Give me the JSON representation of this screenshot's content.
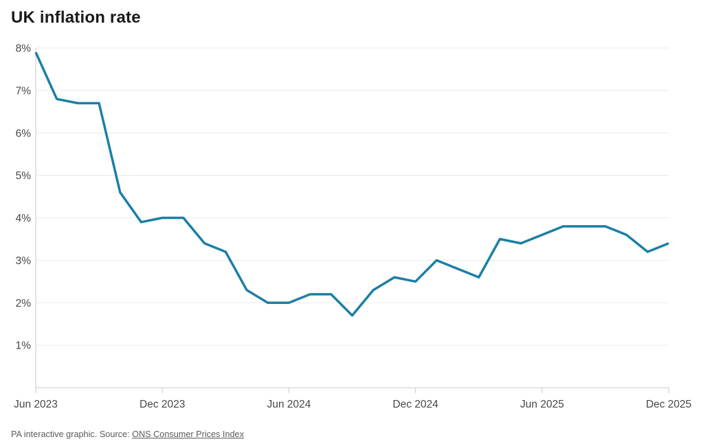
{
  "page": {
    "title": "UK inflation rate"
  },
  "footer": {
    "prefix": "PA interactive graphic. Source: ",
    "link_label": "ONS Consumer Prices Index"
  },
  "chart_data": {
    "type": "line",
    "title": "UK inflation rate",
    "x": [
      "Jun 2023",
      "Jul 2023",
      "Aug 2023",
      "Sep 2023",
      "Oct 2023",
      "Nov 2023",
      "Dec 2023",
      "Jan 2024",
      "Feb 2024",
      "Mar 2024",
      "Apr 2024",
      "May 2024",
      "Jun 2024",
      "Jul 2024",
      "Aug 2024",
      "Sep 2024",
      "Oct 2024",
      "Nov 2024",
      "Dec 2024",
      "Jan 2025",
      "Feb 2025",
      "Mar 2025",
      "Apr 2025",
      "May 2025",
      "Jun 2025",
      "Jul 2025",
      "Aug 2025",
      "Sep 2025",
      "Oct 2025",
      "Nov 2025",
      "Dec 2025"
    ],
    "values": [
      7.9,
      6.8,
      6.7,
      6.7,
      4.6,
      3.9,
      4.0,
      4.0,
      3.4,
      3.2,
      2.3,
      2.0,
      2.0,
      2.2,
      2.2,
      1.7,
      2.3,
      2.6,
      2.5,
      3.0,
      2.8,
      2.6,
      3.5,
      3.4,
      3.6,
      3.8,
      3.8,
      3.8,
      3.6,
      3.2,
      3.4
    ],
    "xlabel": "",
    "ylabel": "",
    "ylim": [
      0,
      8
    ],
    "y_ticks": [
      1,
      2,
      3,
      4,
      5,
      6,
      7,
      8
    ],
    "y_tick_suffix": "%",
    "x_tick_labels": [
      "Jun 2023",
      "Dec 2023",
      "Jun 2024",
      "Dec 2024",
      "Jun 2025",
      "Dec 2025"
    ],
    "grid": "horizontal",
    "legend": "none",
    "line_color": "#1b7fa4",
    "grid_color": "#e9e9e9",
    "axis_color": "#c9c9c9",
    "label_color": "#474747"
  }
}
